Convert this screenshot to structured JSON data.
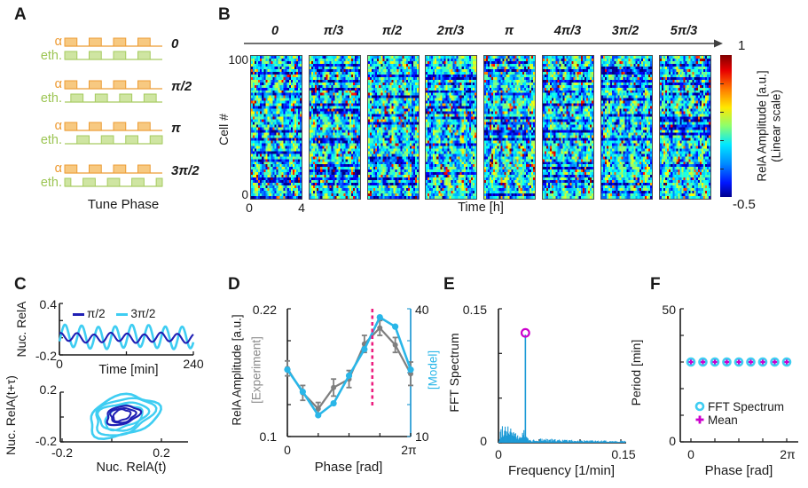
{
  "panels": {
    "a": "A",
    "b": "B",
    "c": "C",
    "d": "D",
    "e": "E",
    "f": "F"
  },
  "panel_a": {
    "signal1_label": "α",
    "signal2_label": "eth.",
    "rows": [
      {
        "phase": "0",
        "shift": 0
      },
      {
        "phase": "π/2",
        "shift": 0.25
      },
      {
        "phase": "π",
        "shift": 0.5
      },
      {
        "phase": "3π/2",
        "shift": 0.75
      }
    ],
    "caption": "Tune Phase",
    "colors": {
      "alpha_fill": "#f7c981",
      "alpha_line": "#ec9c35",
      "eth_fill": "#cfe5a2",
      "eth_line": "#a6cb60"
    }
  },
  "panel_b": {
    "phase_labels": [
      "0",
      "π/3",
      "π/2",
      "2π/3",
      "π",
      "4π/3",
      "3π/2",
      "5π/3"
    ],
    "ylabel": "Cell #",
    "ytick_top": "100",
    "ytick_bottom": "0",
    "xtick_left": "0",
    "xtick_right": "4",
    "xlabel": "Time [h]",
    "colorbar": {
      "max": "1",
      "min": "-0.5",
      "title1": "RelA Amplitude [a.u.]",
      "title2": "(Linear scale)"
    },
    "heatmap": {
      "n_cells": 100,
      "time_hours": 4,
      "value_range": [
        -0.5,
        1
      ],
      "colormap": "jet",
      "n_conditions": 8
    }
  },
  "chart_data": [
    {
      "panel": "C-top",
      "type": "line",
      "xlabel": "Time [min]",
      "ylabel": "Nuc. RelA",
      "xlim": [
        0,
        240
      ],
      "ylim": [
        -0.2,
        0.4
      ],
      "xticks": [
        "0",
        "240"
      ],
      "yticks": [
        "0.4",
        "-0.2"
      ],
      "series": [
        {
          "name": "π/2",
          "color": "#1f1fb4",
          "period_min": 30,
          "mean": 0.0,
          "amplitude": 0.05
        },
        {
          "name": "3π/2",
          "color": "#3ecdf2",
          "period_min": 30,
          "mean": 0.0,
          "amplitude": 0.13
        }
      ]
    },
    {
      "panel": "C-bottom",
      "type": "attractor",
      "xlabel": "Nuc. RelA(t)",
      "ylabel": "Nuc. RelA(t+τ)",
      "xlim": [
        -0.2,
        0.3
      ],
      "ylim": [
        -0.2,
        0.2
      ],
      "xticks": [
        "-0.2",
        "0.2"
      ],
      "yticks": [
        "0.2",
        "-0.2"
      ],
      "series": [
        {
          "name": "π/2",
          "color": "#1f1fb4",
          "center_x": 0.05,
          "center_y": 0.0,
          "radius_x": 0.065,
          "radius_y": 0.07
        },
        {
          "name": "3π/2",
          "color": "#3ecdf2",
          "center_x": 0.05,
          "center_y": 0.0,
          "radius_x": 0.145,
          "radius_y": 0.16
        }
      ]
    },
    {
      "panel": "D",
      "type": "line",
      "xlabel": "Phase [rad]",
      "xticks": [
        "0",
        "2π"
      ],
      "left_axis": {
        "label": "RelA Amplitude [a.u.]",
        "sublabel": "[Experiment]",
        "ticks": [
          "0.22",
          "0.1"
        ],
        "lim": [
          0.1,
          0.22
        ]
      },
      "right_axis": {
        "label": "[Model]",
        "ticks": [
          "40",
          "10"
        ],
        "lim": [
          10,
          40
        ]
      },
      "phases": [
        0,
        0.785,
        1.571,
        2.356,
        3.142,
        3.927,
        4.712,
        5.498,
        6.283
      ],
      "experiment": {
        "values": [
          0.164,
          0.141,
          0.126,
          0.146,
          0.154,
          0.187,
          0.202,
          0.186,
          0.159
        ],
        "errors": [
          0.007,
          0.007,
          0.006,
          0.008,
          0.008,
          0.008,
          0.007,
          0.007,
          0.011
        ],
        "color": "#7f7f7f"
      },
      "model": {
        "values": [
          25.7,
          20.5,
          15.0,
          17.8,
          24.3,
          30.5,
          38.0,
          35.8,
          25.7
        ],
        "color": "#29b6e8"
      },
      "dashed_line": {
        "x_rad": 4.33,
        "color": "#ec1e7f"
      }
    },
    {
      "panel": "E",
      "type": "area",
      "xlabel": "Frequency [1/min]",
      "ylabel": "FFT Spectrum",
      "xlim": [
        0,
        0.15
      ],
      "ylim": [
        0,
        0.15
      ],
      "xticks": [
        "0",
        "0.15"
      ],
      "yticks": [
        "0.15",
        "0"
      ],
      "peak": {
        "frequency": 0.033,
        "value": 0.121,
        "marker_color": "#cc00cc"
      },
      "spectrum_color": "#1c9ad6"
    },
    {
      "panel": "F",
      "type": "scatter",
      "xlabel": "Phase [rad]",
      "ylabel": "Period [min]",
      "xlim": [
        0,
        6.283
      ],
      "ylim": [
        0,
        50
      ],
      "xticks": [
        "0",
        "2π"
      ],
      "yticks": [
        "50",
        "0"
      ],
      "phases": [
        0,
        0.785,
        1.571,
        2.356,
        3.142,
        3.927,
        4.712,
        5.498,
        6.283
      ],
      "periods": [
        30,
        30,
        30,
        30,
        30,
        30,
        30,
        30,
        30
      ],
      "legend": [
        {
          "label": "FFT Spectrum",
          "marker": "circle",
          "color": "#3ecdf2"
        },
        {
          "label": "Mean",
          "marker": "plus",
          "color": "#cc00cc"
        }
      ]
    }
  ]
}
